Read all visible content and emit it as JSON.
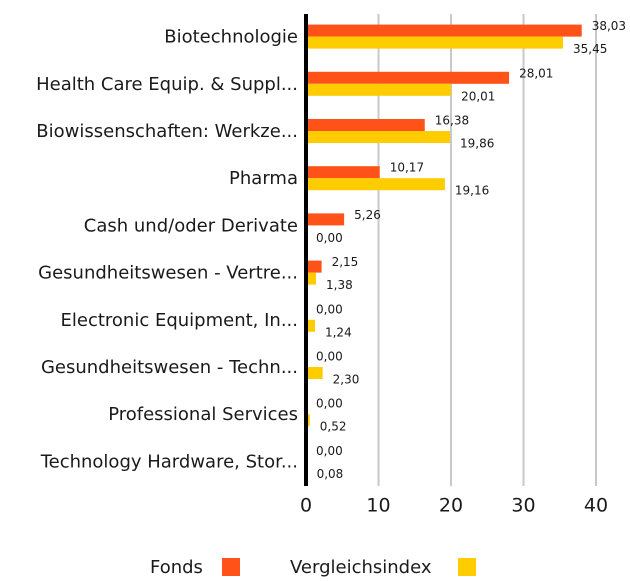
{
  "chart_data": {
    "type": "bar",
    "categories": [
      "Biotechnologie",
      "Health Care Equip. & Suppl...",
      "Biowissenschaften: Werkze...",
      "Pharma",
      "Cash und/oder Derivate",
      "Gesundheitswesen - Vertre...",
      "Electronic Equipment, In...",
      "Gesundheitswesen - Techn...",
      "Professional Services",
      "Technology Hardware, Stor..."
    ],
    "series": [
      {
        "name": "Fonds",
        "color": "#ff5219",
        "values": [
          38.03,
          28.01,
          16.38,
          10.17,
          5.26,
          2.15,
          0,
          0,
          0,
          0
        ],
        "value_labels": [
          "38,03",
          "28,01",
          "16,38",
          "10,17",
          "5,26",
          "2,15",
          "0,00",
          "0,00",
          "0,00",
          "0,00"
        ]
      },
      {
        "name": "Vergleichsindex",
        "color": "#ffcc00",
        "values": [
          35.45,
          20.01,
          19.86,
          19.16,
          0,
          1.38,
          1.24,
          2.3,
          0.52,
          0.08
        ],
        "value_labels": [
          "35,45",
          "20,01",
          "19,86",
          "19,16",
          "0,00",
          "1,38",
          "1,24",
          "2,30",
          "0,52",
          "0,08"
        ]
      }
    ],
    "xlim": [
      0,
      40
    ],
    "xticks": [
      0,
      10,
      20,
      30,
      40
    ],
    "grid": true,
    "legend": "bottom"
  }
}
